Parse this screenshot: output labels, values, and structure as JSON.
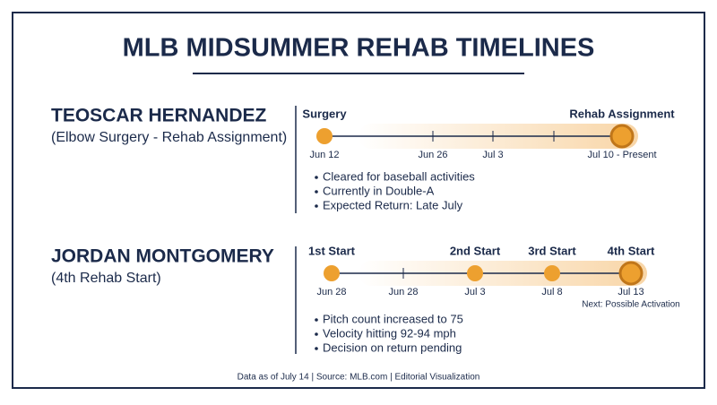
{
  "title": "MLB MIDSUMMER REHAB TIMELINES",
  "players": [
    {
      "name": "TEOSCAR HERNANDEZ",
      "detail": "(Elbow Surgery - Rehab Assignment)",
      "milestones": [
        {
          "label": "Surgery",
          "date": "Jun 12"
        },
        {
          "label": "Rehab Assignment",
          "date": "Jul 10 - Present"
        }
      ],
      "ticks": [
        "Jun 26",
        "Jul 3"
      ],
      "bullets": [
        "Cleared for baseball activities",
        "Currently in Double-A",
        "Expected Return: Late July"
      ]
    },
    {
      "name": "JORDAN MONTGOMERY",
      "detail": "(4th Rehab Start)",
      "milestones": [
        {
          "label": "1st Start",
          "date": "Jun 28"
        },
        {
          "label": "2nd Start",
          "date": "Jul 3"
        },
        {
          "label": "3rd Start",
          "date": "Jul 8"
        },
        {
          "label": "4th Start",
          "date": "Jul 13"
        }
      ],
      "ticks": [
        "Jun 28"
      ],
      "note": "Next: Possible Activation",
      "bullets": [
        "Pitch count increased to 75",
        "Velocity hitting 92-94 mph",
        "Decision on return pending"
      ]
    }
  ],
  "footer": "Data as of July 14 | Source: MLB.com | Editorial Visualization"
}
